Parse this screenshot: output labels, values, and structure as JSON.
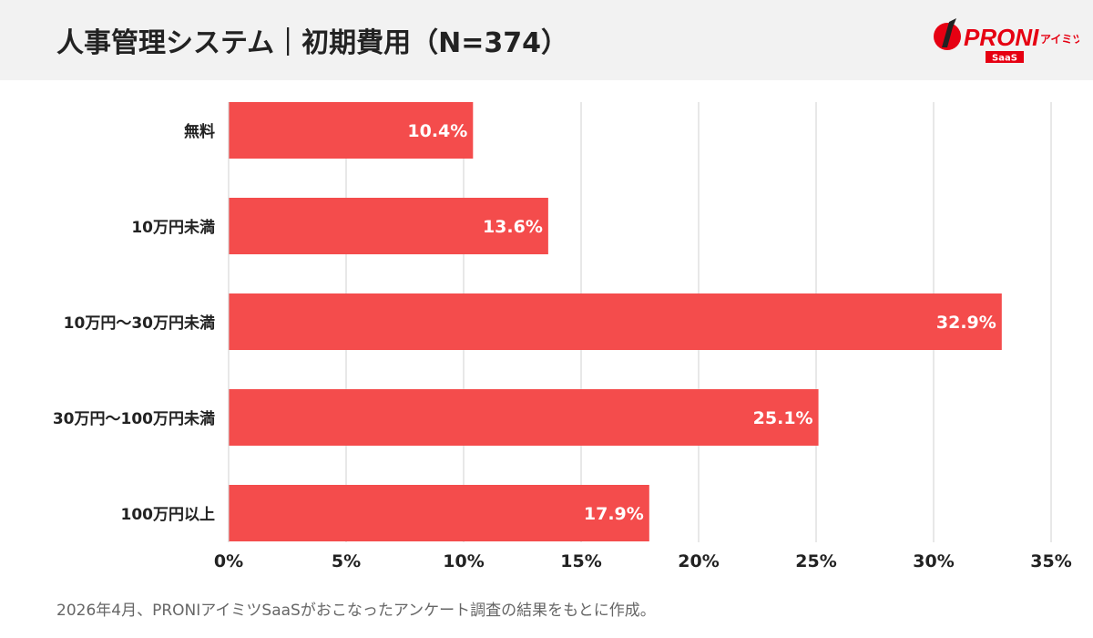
{
  "header": {
    "title": "人事管理システム｜初期費用（N=374）"
  },
  "logo": {
    "text": "PRONI",
    "sub": "アイミツ",
    "badge": "SaaS",
    "color": "#e60012"
  },
  "footer": {
    "note": "2026年4月、PRONIアイミツSaaSがおこなったアンケート調査の結果をもとに作成。"
  },
  "chart_data": {
    "type": "bar",
    "orientation": "horizontal",
    "categories": [
      "無料",
      "10万円未満",
      "10万円〜30万円未満",
      "30万円〜100万円未満",
      "100万円以上"
    ],
    "values": [
      10.4,
      13.6,
      32.9,
      25.1,
      17.9
    ],
    "data_labels": [
      "10.4%",
      "13.6%",
      "32.9%",
      "25.1%",
      "17.9%"
    ],
    "xlim": [
      0,
      35
    ],
    "xticks": [
      0,
      5,
      10,
      15,
      20,
      25,
      30,
      35
    ],
    "xtick_labels": [
      "0%",
      "5%",
      "10%",
      "15%",
      "20%",
      "25%",
      "30%",
      "35%"
    ],
    "grid": "vertical",
    "bar_color": "#f44c4c"
  }
}
